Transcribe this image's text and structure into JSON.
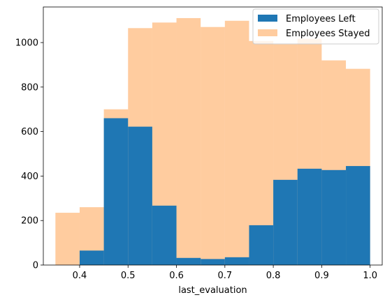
{
  "chart_data": {
    "type": "bar",
    "xlabel": "last_evaluation",
    "ylabel": "",
    "xlim": [
      0.325,
      1.025
    ],
    "ylim": [
      0,
      1160
    ],
    "x_ticks": [
      0.4,
      0.5,
      0.6,
      0.7,
      0.8,
      0.9,
      1.0
    ],
    "x_tick_labels": [
      "0.4",
      "0.5",
      "0.6",
      "0.7",
      "0.8",
      "0.9",
      "1.0"
    ],
    "y_ticks": [
      0,
      200,
      400,
      600,
      800,
      1000
    ],
    "y_tick_labels": [
      "0",
      "200",
      "400",
      "600",
      "800",
      "1000"
    ],
    "legend_position": "top-right",
    "grid": false,
    "series": [
      {
        "name": "Employees Left",
        "color": "#1f77b4",
        "alpha": 1.0,
        "bins": [
          [
            0.4,
            0.45,
            65
          ],
          [
            0.45,
            0.5,
            660
          ],
          [
            0.5,
            0.55,
            622
          ],
          [
            0.55,
            0.6,
            267
          ],
          [
            0.6,
            0.65,
            32
          ],
          [
            0.65,
            0.7,
            27
          ],
          [
            0.7,
            0.75,
            35
          ],
          [
            0.75,
            0.8,
            179
          ],
          [
            0.8,
            0.85,
            383
          ],
          [
            0.85,
            0.9,
            433
          ],
          [
            0.9,
            0.95,
            427
          ],
          [
            0.95,
            1.0,
            445
          ]
        ]
      },
      {
        "name": "Employees Stayed",
        "color": "#ff7f0e",
        "alpha": 0.4,
        "bins": [
          [
            0.35,
            0.4,
            235
          ],
          [
            0.4,
            0.45,
            260
          ],
          [
            0.45,
            0.5,
            700
          ],
          [
            0.5,
            0.55,
            1065
          ],
          [
            0.55,
            0.6,
            1090
          ],
          [
            0.6,
            0.65,
            1110
          ],
          [
            0.65,
            0.7,
            1070
          ],
          [
            0.7,
            0.75,
            1098
          ],
          [
            0.75,
            0.8,
            1007
          ],
          [
            0.8,
            0.85,
            992
          ],
          [
            0.85,
            0.9,
            1017
          ],
          [
            0.9,
            0.95,
            920
          ],
          [
            0.95,
            1.0,
            882
          ]
        ]
      }
    ]
  }
}
